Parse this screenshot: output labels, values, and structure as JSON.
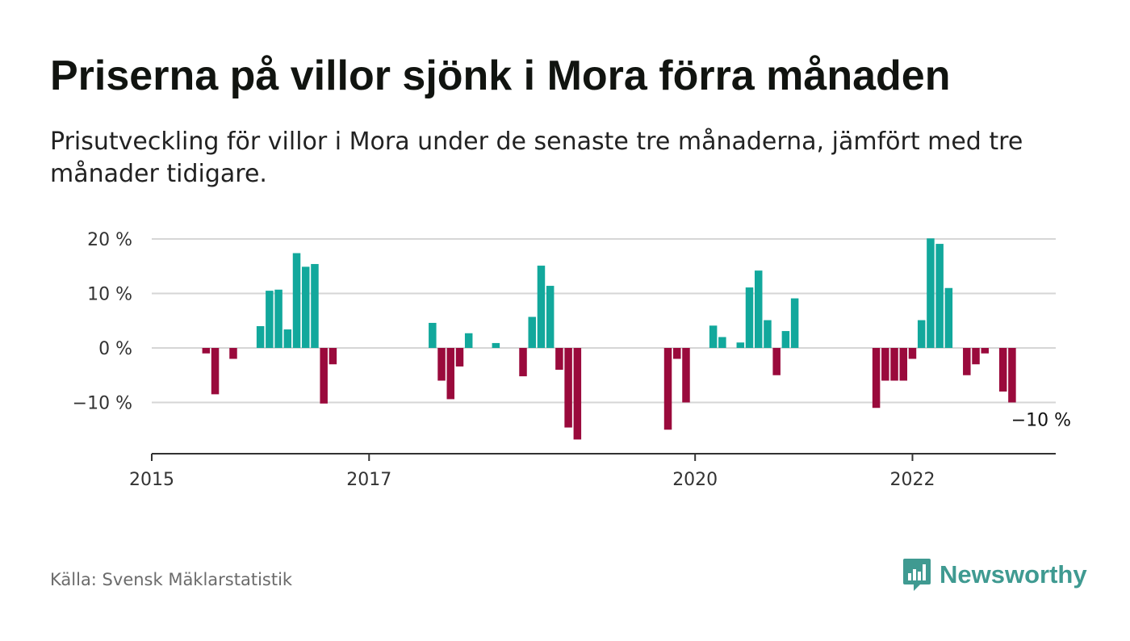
{
  "title": "Priserna på villor sjönk i Mora förra månaden",
  "subtitle": "Prisutveckling för villor i Mora under de senaste tre månaderna, jämfört med tre månader tidigare.",
  "source": "Källa: Svensk Mäklarstatistik",
  "brand": {
    "name": "Newsworthy",
    "icon": "bar-chart-speech-bubble-icon",
    "color": "#3f9a91"
  },
  "colors": {
    "positive": "#12a89c",
    "negative": "#9a0a3c",
    "grid": "#d6d6d6",
    "axis": "#333333"
  },
  "chart_data": {
    "type": "bar",
    "title": "",
    "xlabel": "",
    "ylabel": "",
    "unit": "%",
    "ylim": [
      -20,
      20
    ],
    "grid": true,
    "x_ticks": [
      {
        "label": "2015",
        "month": 0
      },
      {
        "label": "2017",
        "month": 24
      },
      {
        "label": "2020",
        "month": 60
      },
      {
        "label": "2022",
        "month": 84
      }
    ],
    "y_ticks": [
      {
        "value": 20,
        "label": "20 %"
      },
      {
        "value": 10,
        "label": "10 %"
      },
      {
        "value": 0,
        "label": "0 %"
      },
      {
        "value": -10,
        "label": "−10 %"
      }
    ],
    "last_value_label": "−10 %",
    "bars": [
      {
        "month": 6,
        "value": -1
      },
      {
        "month": 7,
        "value": -8.5
      },
      {
        "month": 9,
        "value": -2
      },
      {
        "month": 12,
        "value": 4
      },
      {
        "month": 13,
        "value": 10.5
      },
      {
        "month": 14,
        "value": 10.7
      },
      {
        "month": 15,
        "value": 3.4
      },
      {
        "month": 16,
        "value": 17.4
      },
      {
        "month": 17,
        "value": 14.9
      },
      {
        "month": 18,
        "value": 15.4
      },
      {
        "month": 19,
        "value": -10.2
      },
      {
        "month": 20,
        "value": -3
      },
      {
        "month": 31,
        "value": 4.6
      },
      {
        "month": 32,
        "value": -6
      },
      {
        "month": 33,
        "value": -9.4
      },
      {
        "month": 34,
        "value": -3.4
      },
      {
        "month": 35,
        "value": 2.7
      },
      {
        "month": 38,
        "value": 0.9
      },
      {
        "month": 41,
        "value": -5.2
      },
      {
        "month": 42,
        "value": 5.7
      },
      {
        "month": 43,
        "value": 15.1
      },
      {
        "month": 44,
        "value": 11.4
      },
      {
        "month": 45,
        "value": -4
      },
      {
        "month": 46,
        "value": -14.6
      },
      {
        "month": 47,
        "value": -16.8
      },
      {
        "month": 57,
        "value": -15
      },
      {
        "month": 58,
        "value": -2
      },
      {
        "month": 59,
        "value": -10
      },
      {
        "month": 62,
        "value": 4.1
      },
      {
        "month": 63,
        "value": 2
      },
      {
        "month": 65,
        "value": 1
      },
      {
        "month": 66,
        "value": 11.1
      },
      {
        "month": 67,
        "value": 14.2
      },
      {
        "month": 68,
        "value": 5.1
      },
      {
        "month": 69,
        "value": -5
      },
      {
        "month": 70,
        "value": 3.1
      },
      {
        "month": 71,
        "value": 9.1
      },
      {
        "month": 80,
        "value": -11
      },
      {
        "month": 81,
        "value": -6
      },
      {
        "month": 82,
        "value": -6
      },
      {
        "month": 83,
        "value": -6
      },
      {
        "month": 84,
        "value": -2
      },
      {
        "month": 85,
        "value": 5.1
      },
      {
        "month": 86,
        "value": 20.1
      },
      {
        "month": 87,
        "value": 19.1
      },
      {
        "month": 88,
        "value": 11
      },
      {
        "month": 90,
        "value": -5
      },
      {
        "month": 91,
        "value": -3
      },
      {
        "month": 92,
        "value": -1
      },
      {
        "month": 94,
        "value": -8
      },
      {
        "month": 95,
        "value": -10
      }
    ]
  }
}
